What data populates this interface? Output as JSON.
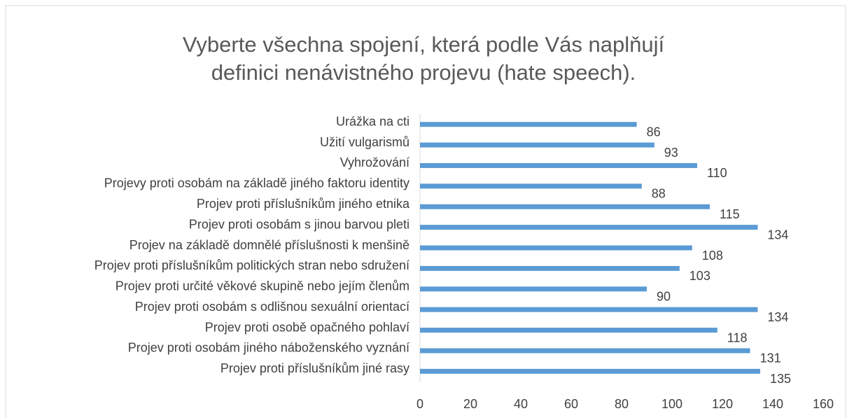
{
  "chart_data": {
    "type": "barh",
    "title": "Vyberte všechna spojení, která podle Vás naplňují definici nenávistného projevu (hate speech).",
    "categories": [
      "Urážka na cti",
      "Užití vulgarismů",
      "Vyhrožování",
      "Projevy proti osobám na základě jiného faktoru identity",
      "Projev proti příslušníkům jiného etnika",
      "Projev proti osobám s jinou barvou pleti",
      "Projev na základě domnělé příslušnosti k menšině",
      "Projev proti příslušníkům politických stran nebo sdružení",
      "Projev proti určité věkové skupině nebo jejím členům",
      "Projev proti osobám s odlišnou sexuální orientací",
      "Projev proti osobě opačného pohlaví",
      "Projev proti osobám jiného náboženského vyznání",
      "Projev proti příslušníkům jiné rasy"
    ],
    "values": [
      86,
      93,
      110,
      88,
      115,
      134,
      108,
      103,
      90,
      134,
      118,
      131,
      135
    ],
    "color": "#5b9bd5",
    "xlim": [
      0,
      160
    ],
    "xticks": [
      0,
      20,
      40,
      60,
      80,
      100,
      120,
      140,
      160
    ],
    "grid": false
  }
}
